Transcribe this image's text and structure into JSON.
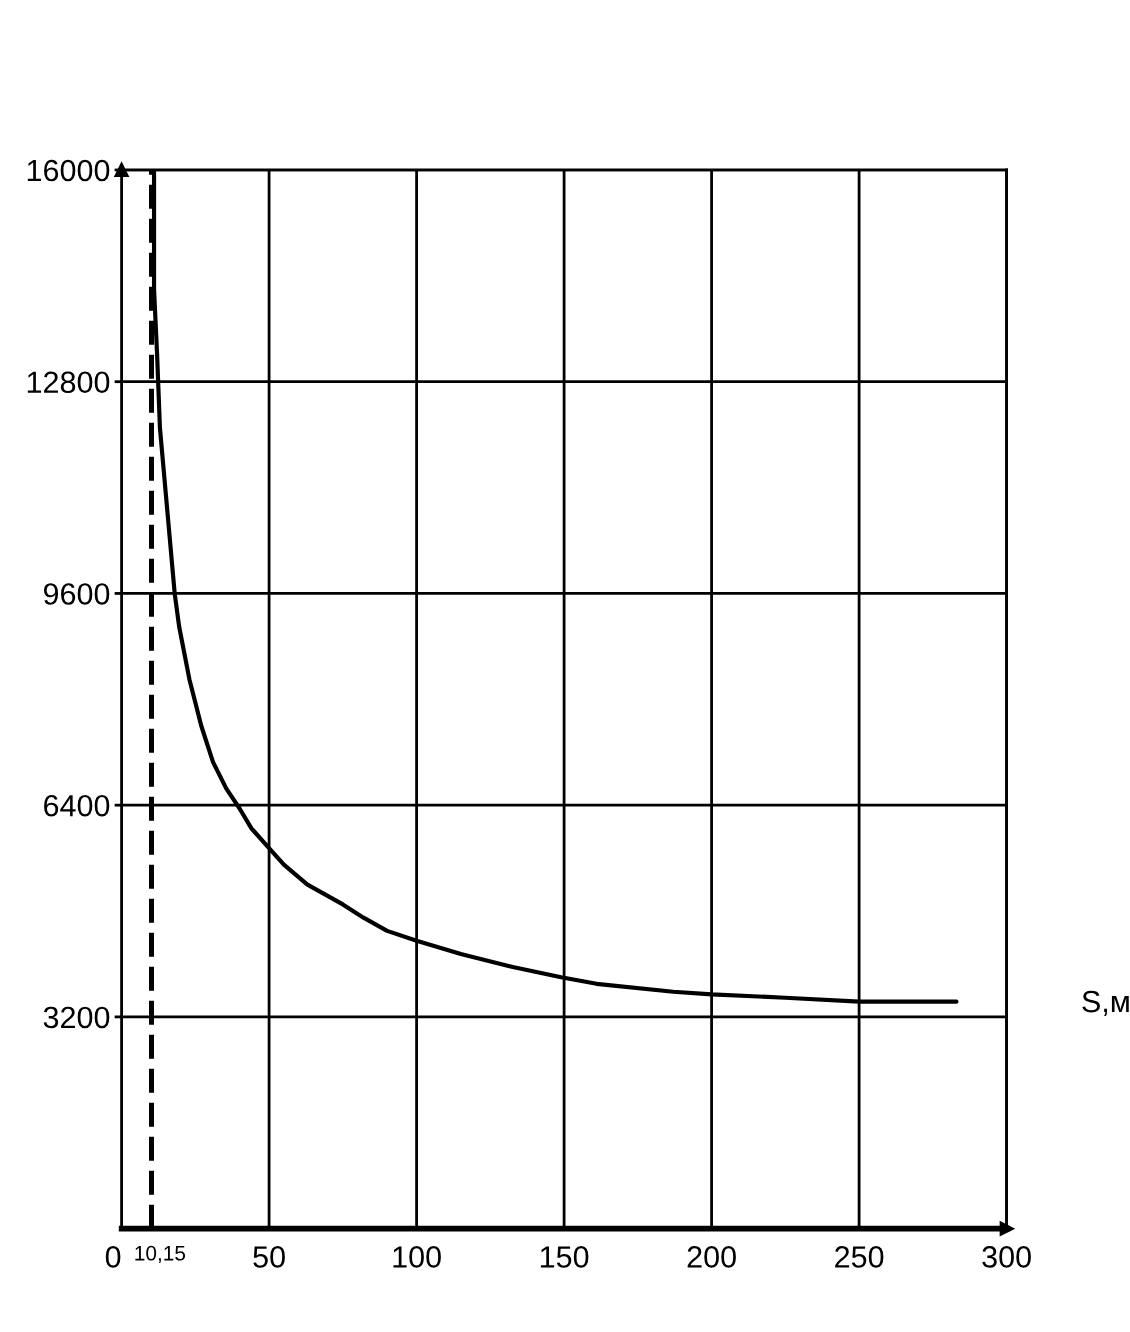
{
  "chart_data": {
    "type": "line",
    "xlabel": "S,м",
    "series": [
      {
        "color": "#000000",
        "x": [
          11,
          11,
          12,
          13,
          15,
          18,
          19.5,
          23,
          27,
          31,
          35.5,
          40,
          44,
          49,
          55,
          63,
          75,
          82,
          90,
          100,
          115,
          133,
          149,
          161,
          187,
          200,
          225,
          250,
          283
        ],
        "values": [
          16000,
          14200,
          13250,
          12100,
          11100,
          9600,
          9100,
          8300,
          7600,
          7050,
          6650,
          6350,
          6050,
          5800,
          5500,
          5200,
          4900,
          4700,
          4500,
          4350,
          4150,
          3950,
          3800,
          3700,
          3580,
          3540,
          3490,
          3430,
          3430
        ]
      }
    ],
    "xlim": [
      0,
      300
    ],
    "ylim": [
      0,
      16000
    ],
    "xticks": [
      0,
      50,
      100,
      150,
      200,
      250,
      300
    ],
    "yticks": [
      3200,
      6400,
      9600,
      12800,
      16000
    ],
    "ref_lines": [
      {
        "axis": "x",
        "value": 10.15,
        "label": "10,15",
        "color": "#000000",
        "line_style": "dashed"
      }
    ],
    "grid": true
  }
}
